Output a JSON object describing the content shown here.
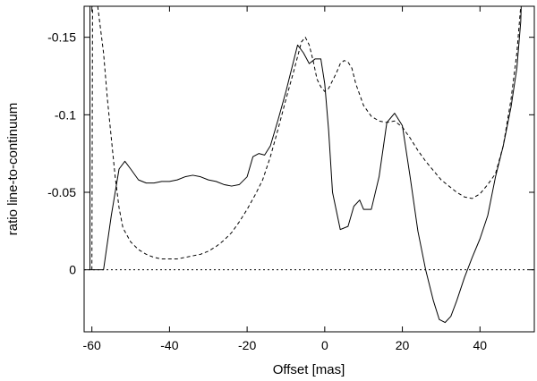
{
  "chart_data": {
    "type": "line",
    "xlabel": "Offset [mas]",
    "ylabel": "ratio line-to-continuum",
    "xlim": [
      -62,
      54
    ],
    "ylim": [
      0.04,
      -0.17
    ],
    "y_axis_inverted": true,
    "grid": false,
    "legend": "none",
    "xticks": [
      -60,
      -40,
      -20,
      0,
      20,
      40
    ],
    "xtick_labels": [
      "-60",
      "-40",
      "-20",
      "0",
      "20",
      "40"
    ],
    "yticks": [
      -0.15,
      -0.1,
      -0.05,
      0
    ],
    "ytick_labels": [
      "-0.15",
      "-0.1",
      "-0.05",
      "0"
    ],
    "reference_lines": [
      {
        "orientation": "horizontal",
        "y": 0,
        "style": "dotted"
      }
    ],
    "series": [
      {
        "style": "solid",
        "color": "#000000",
        "x": [
          -60.5,
          -60.5,
          -57,
          -55,
          -53,
          -51.5,
          -50,
          -48,
          -46,
          -44,
          -42,
          -40,
          -38,
          -36,
          -34,
          -32,
          -30,
          -28,
          -26,
          -24,
          -22,
          -20,
          -18.5,
          -17,
          -15.5,
          -14,
          -12,
          -10,
          -8.5,
          -7,
          -5.5,
          -4,
          -2.5,
          -1,
          0,
          1,
          2,
          4,
          6,
          7.5,
          9,
          10,
          12,
          14,
          16,
          18,
          20,
          22,
          24,
          26,
          28,
          29.5,
          31,
          32.5,
          34,
          36,
          38,
          40,
          42,
          44,
          46,
          48,
          49.5,
          50.5,
          51
        ],
        "y": [
          -0.2,
          0,
          0,
          -0.035,
          -0.065,
          -0.07,
          -0.065,
          -0.058,
          -0.056,
          -0.056,
          -0.057,
          -0.057,
          -0.058,
          -0.06,
          -0.061,
          -0.06,
          -0.058,
          -0.057,
          -0.055,
          -0.054,
          -0.055,
          -0.06,
          -0.073,
          -0.075,
          -0.074,
          -0.08,
          -0.097,
          -0.115,
          -0.13,
          -0.145,
          -0.14,
          -0.133,
          -0.136,
          -0.136,
          -0.12,
          -0.09,
          -0.05,
          -0.026,
          -0.028,
          -0.041,
          -0.045,
          -0.039,
          -0.039,
          -0.06,
          -0.095,
          -0.101,
          -0.093,
          -0.06,
          -0.025,
          0,
          0.02,
          0.032,
          0.034,
          0.03,
          0.02,
          0.005,
          -0.008,
          -0.02,
          -0.035,
          -0.06,
          -0.08,
          -0.105,
          -0.13,
          -0.16,
          -0.2
        ]
      },
      {
        "style": "dashed",
        "color": "#000000",
        "x": [
          -60,
          -59.8,
          -58.5,
          -57,
          -56,
          -55,
          -54,
          -53,
          -52,
          -50,
          -48,
          -46,
          -44,
          -42,
          -40,
          -38,
          -36,
          -34,
          -32,
          -30,
          -28,
          -26,
          -24,
          -22,
          -20,
          -18,
          -16,
          -14,
          -12,
          -10,
          -8,
          -6,
          -5,
          -4,
          -3,
          -2,
          -1,
          0,
          1,
          2,
          3,
          4,
          5,
          6,
          7,
          8,
          10,
          12,
          14,
          16,
          18,
          20,
          22,
          24,
          26,
          28,
          30,
          32,
          34,
          36,
          38,
          40,
          42,
          44,
          46,
          48,
          49.5,
          50.5,
          51.3
        ],
        "y": [
          0,
          -0.2,
          -0.17,
          -0.14,
          -0.11,
          -0.085,
          -0.06,
          -0.04,
          -0.027,
          -0.018,
          -0.013,
          -0.01,
          -0.008,
          -0.007,
          -0.007,
          -0.007,
          -0.008,
          -0.009,
          -0.01,
          -0.012,
          -0.015,
          -0.019,
          -0.024,
          -0.031,
          -0.039,
          -0.048,
          -0.058,
          -0.073,
          -0.091,
          -0.11,
          -0.128,
          -0.147,
          -0.15,
          -0.145,
          -0.135,
          -0.123,
          -0.118,
          -0.115,
          -0.117,
          -0.122,
          -0.127,
          -0.133,
          -0.135,
          -0.134,
          -0.13,
          -0.12,
          -0.106,
          -0.099,
          -0.096,
          -0.095,
          -0.096,
          -0.092,
          -0.085,
          -0.077,
          -0.07,
          -0.064,
          -0.058,
          -0.054,
          -0.05,
          -0.047,
          -0.046,
          -0.049,
          -0.055,
          -0.062,
          -0.08,
          -0.11,
          -0.14,
          -0.17,
          -0.2
        ]
      }
    ]
  }
}
